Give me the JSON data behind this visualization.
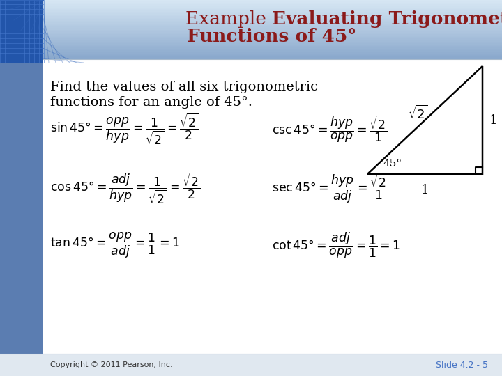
{
  "bg_color": "#ffffff",
  "title_color": "#8B1A1A",
  "body_color": "#000000",
  "slide_label": "Slide 4.2 - 5",
  "slide_label_color": "#4472c4",
  "copyright": "Copyright © 2011 Pearson, Inc.",
  "left_bar_color": "#5b7db1",
  "header_bg_top": "#4a7ab5",
  "header_bg_bottom": "#c8d8ec",
  "title_line1": "Example Evaluating Trigonometric",
  "title_line2": "Functions of 45°",
  "body_line1": "Find the values of all six trigonometric",
  "body_line2": "functions for an angle of 45°.",
  "fs_title": 19,
  "fs_body": 14,
  "fs_formula": 12.5,
  "fs_small": 8
}
